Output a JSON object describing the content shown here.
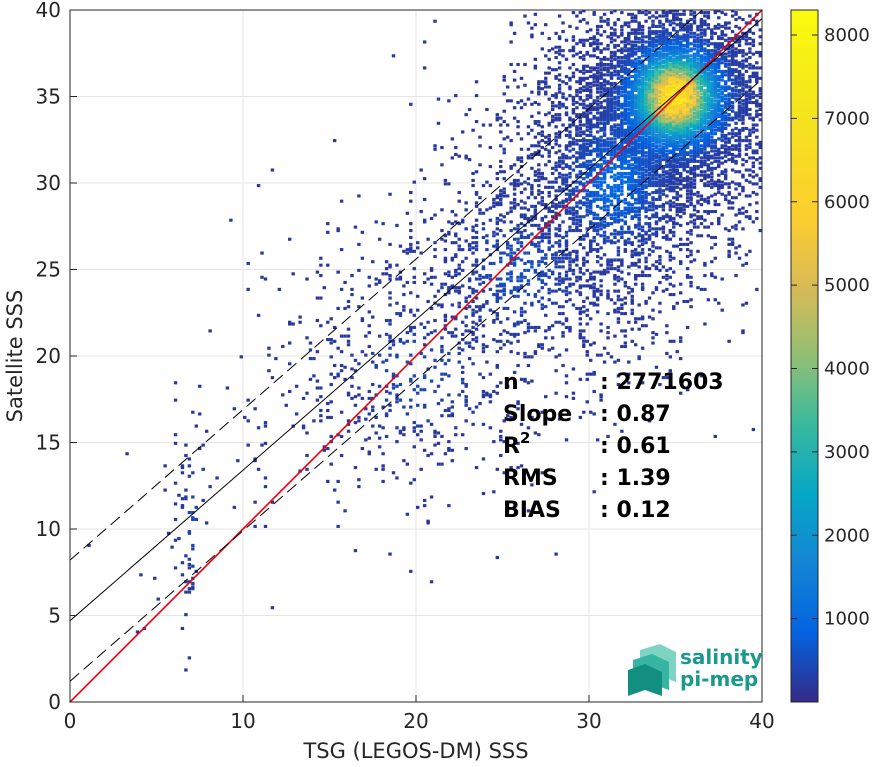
{
  "chart_data": {
    "type": "heatmap",
    "xlabel": "TSG (LEGOS-DM) SSS",
    "ylabel": "Satellite SSS",
    "xlim": [
      0,
      40
    ],
    "ylim": [
      0,
      40
    ],
    "xticks": [
      0,
      10,
      20,
      30,
      40
    ],
    "yticks": [
      0,
      5,
      10,
      15,
      20,
      25,
      30,
      35,
      40
    ],
    "grid": true,
    "colorbar": {
      "range": [
        0,
        8300
      ],
      "ticks": [
        1000,
        2000,
        3000,
        4000,
        5000,
        6000,
        7000,
        8000
      ],
      "colormap": "parula"
    },
    "density_clusters": [
      {
        "x": 35.0,
        "y": 35.0,
        "sx": 3.2,
        "sy": 3.4,
        "weight": 1.0,
        "peak": 8200
      },
      {
        "x": 31.5,
        "y": 30.0,
        "sx": 3.5,
        "sy": 4.5,
        "weight": 0.35,
        "peak": 900
      },
      {
        "x": 26.0,
        "y": 25.0,
        "sx": 4.0,
        "sy": 4.0,
        "weight": 0.15,
        "peak": 400
      },
      {
        "x": 20.0,
        "y": 19.0,
        "sx": 4.5,
        "sy": 4.0,
        "weight": 0.08,
        "peak": 300
      },
      {
        "x": 7.0,
        "y": 10.5,
        "sx": 0.6,
        "sy": 4.5,
        "weight": 0.08,
        "peak": 300
      }
    ],
    "lines": [
      {
        "name": "identity",
        "slope": 1.0,
        "intercept": 0.0,
        "color": "#e8000b",
        "style": "solid"
      },
      {
        "name": "fit",
        "slope": 0.87,
        "intercept": 4.7,
        "color": "#000000",
        "style": "solid"
      },
      {
        "name": "fit-upper",
        "slope": 0.87,
        "intercept": 8.2,
        "color": "#000000",
        "style": "dashed"
      },
      {
        "name": "fit-lower",
        "slope": 0.87,
        "intercept": 1.2,
        "color": "#000000",
        "style": "dashed"
      }
    ],
    "stats": [
      {
        "label": "n",
        "sup": "",
        "value": ": 2771603"
      },
      {
        "label": "Slope",
        "sup": "",
        "value": ": 0.87"
      },
      {
        "label": "R",
        "sup": "2",
        "value": ": 0.61"
      },
      {
        "label": "RMS",
        "sup": "",
        "value": ": 1.39"
      },
      {
        "label": "BIAS",
        "sup": "",
        "value": ": 0.12"
      }
    ]
  },
  "logo": {
    "line1": "salinity",
    "line2": "pi-mep"
  },
  "colors": {
    "identity_line": "#e8000b",
    "fit_line": "#000000",
    "grid": "#e6e6e6",
    "axis": "#262626",
    "logo": "#1a9a8c"
  }
}
